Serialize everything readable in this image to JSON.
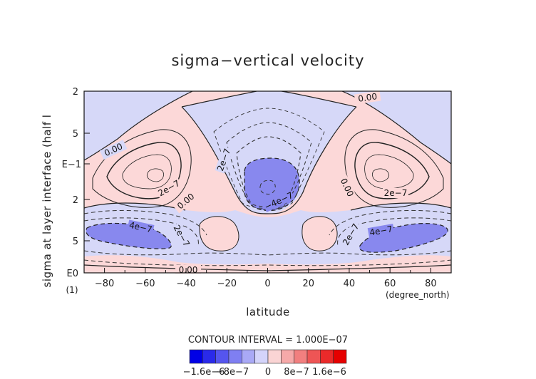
{
  "chart_data": {
    "type": "heatmap",
    "title": "sigma−vertical velocity",
    "xlabel": "latitude",
    "ylabel": "sigma at layer interface (half l",
    "x_unit": "(degree_north)",
    "y_unit": "(1)",
    "xlim": [
      -90,
      90
    ],
    "x_ticks": [
      -80,
      -60,
      -40,
      -20,
      0,
      20,
      40,
      60,
      80
    ],
    "y_tick_labels": [
      "2",
      "5",
      "E−1",
      "2",
      "5",
      "E0"
    ],
    "contour_interval": "CONTOUR INTERVAL = 1.000E−07",
    "contour_labels": [
      "0.00",
      "0.00",
      "0.00",
      "0.00",
      "0.00",
      "2e−7",
      "2e−7",
      "2e−7",
      "2e−7",
      "2e−7",
      "−4e−7",
      "4e−7",
      "4e−7"
    ],
    "colorbar_labels": [
      "−1.6e−6",
      "−8e−7",
      "0",
      "8e−7",
      "1.6e−6"
    ],
    "colorbar_colors": [
      "#0000e6",
      "#2a2aea",
      "#5555ee",
      "#7f7ff2",
      "#a9a9f6",
      "#d4d4fa",
      "#fad4d4",
      "#f6a9a9",
      "#f27f7f",
      "#ee5555",
      "#ea2a2a",
      "#e60000"
    ],
    "colors": {
      "negative_weak": "#d6d8f8",
      "negative_strong": "#8888ee",
      "positive_weak": "#fcd8d8"
    }
  }
}
